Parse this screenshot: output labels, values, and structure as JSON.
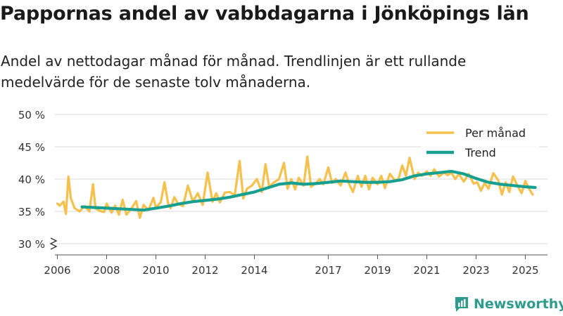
{
  "title": "Pappornas andel av vabbdagarna i Jönköpings län",
  "subtitle": "Andel av nettodagar månad för månad. Trendlinjen är ett rullande medelvärde för de senaste tolv månaderna.",
  "brand": {
    "name": "Newsworthy"
  },
  "colors": {
    "monthly": "#f6c04b",
    "trend": "#17a090",
    "grid": "#e2e2e2",
    "axis": "#555555"
  },
  "chart_data": {
    "type": "line",
    "title": "Pappornas andel av vabbdagarna i Jönköpings län",
    "xlabel": "",
    "ylabel": "",
    "ylim": [
      30,
      50
    ],
    "xlim": [
      2005.9,
      2025.9
    ],
    "y_ticks": [
      30,
      35,
      40,
      45,
      50
    ],
    "y_tick_labels": [
      "30 %",
      "35 %",
      "40 %",
      "45 %",
      "50 %"
    ],
    "x_ticks": [
      2006,
      2008,
      2010,
      2012,
      2014,
      2017,
      2019,
      2021,
      2023,
      2025
    ],
    "x_tick_labels": [
      "2006",
      "2008",
      "2010",
      "2012",
      "2014",
      "2017",
      "2019",
      "2021",
      "2023",
      "2025"
    ],
    "axis_break": true,
    "legend": {
      "position": "top-right",
      "entries": [
        "Per månad",
        "Trend"
      ]
    },
    "series": [
      {
        "name": "Per månad",
        "x": [
          2006.0,
          2006.1,
          2006.25,
          2006.35,
          2006.45,
          2006.55,
          2006.7,
          2006.9,
          2007.1,
          2007.3,
          2007.45,
          2007.55,
          2007.7,
          2007.9,
          2008.0,
          2008.2,
          2008.35,
          2008.5,
          2008.65,
          2008.8,
          2009.0,
          2009.2,
          2009.35,
          2009.5,
          2009.7,
          2009.9,
          2010.0,
          2010.2,
          2010.35,
          2010.5,
          2010.6,
          2010.75,
          2010.9,
          2011.1,
          2011.3,
          2011.5,
          2011.7,
          2011.9,
          2012.1,
          2012.3,
          2012.45,
          2012.6,
          2012.8,
          2013.0,
          2013.2,
          2013.4,
          2013.55,
          2013.7,
          2013.9,
          2014.1,
          2014.3,
          2014.45,
          2014.6,
          2014.8,
          2015.0,
          2015.2,
          2015.35,
          2015.5,
          2015.65,
          2015.8,
          2016.0,
          2016.15,
          2016.3,
          2016.5,
          2016.65,
          2016.8,
          2017.0,
          2017.15,
          2017.3,
          2017.5,
          2017.7,
          2017.85,
          2018.0,
          2018.2,
          2018.35,
          2018.5,
          2018.65,
          2018.8,
          2019.0,
          2019.15,
          2019.3,
          2019.5,
          2019.7,
          2019.85,
          2020.0,
          2020.15,
          2020.3,
          2020.5,
          2020.65,
          2020.8,
          2021.0,
          2021.15,
          2021.3,
          2021.5,
          2021.7,
          2021.85,
          2022.0,
          2022.15,
          2022.3,
          2022.5,
          2022.7,
          2022.9,
          2023.05,
          2023.2,
          2023.35,
          2023.5,
          2023.7,
          2023.9,
          2024.05,
          2024.2,
          2024.35,
          2024.5,
          2024.7,
          2024.85,
          2025.0,
          2025.15,
          2025.3
        ],
        "values": [
          36.2,
          35.9,
          36.5,
          34.6,
          40.4,
          37.0,
          35.5,
          35.0,
          35.8,
          35.0,
          39.2,
          35.5,
          35.1,
          34.9,
          36.2,
          34.8,
          35.9,
          34.5,
          36.8,
          34.5,
          35.4,
          36.6,
          34.0,
          36.0,
          35.2,
          37.1,
          35.6,
          36.4,
          39.5,
          36.2,
          35.5,
          37.2,
          36.2,
          35.8,
          39.0,
          36.5,
          37.8,
          36.0,
          41.0,
          36.5,
          37.8,
          36.4,
          37.9,
          38.0,
          37.5,
          42.8,
          37.0,
          38.5,
          39.0,
          40.0,
          38.0,
          42.3,
          38.8,
          39.5,
          40.0,
          42.5,
          38.5,
          40.0,
          38.4,
          40.2,
          39.0,
          43.5,
          38.8,
          39.4,
          40.0,
          39.2,
          41.8,
          39.4,
          40.0,
          39.0,
          41.0,
          39.2,
          38.0,
          40.5,
          38.8,
          40.5,
          38.4,
          40.2,
          39.2,
          40.5,
          38.6,
          40.8,
          39.8,
          40.0,
          42.1,
          40.5,
          43.3,
          40.0,
          41.0,
          40.5,
          41.2,
          40.5,
          41.5,
          40.4,
          41.0,
          40.6,
          41.0,
          40.0,
          40.8,
          39.6,
          40.8,
          39.3,
          39.5,
          38.2,
          39.4,
          38.5,
          40.9,
          39.8,
          37.6,
          39.5,
          38.0,
          40.4,
          38.8,
          37.8,
          39.7,
          38.5,
          37.6
        ]
      },
      {
        "name": "Trend",
        "x": [
          2007.0,
          2007.5,
          2008.0,
          2008.5,
          2009.0,
          2009.5,
          2010.0,
          2010.5,
          2011.0,
          2011.5,
          2012.0,
          2012.5,
          2013.0,
          2013.5,
          2014.0,
          2014.5,
          2015.0,
          2015.5,
          2016.0,
          2016.5,
          2017.0,
          2017.5,
          2018.0,
          2018.5,
          2019.0,
          2019.5,
          2020.0,
          2020.5,
          2021.0,
          2021.5,
          2022.0,
          2022.5,
          2023.0,
          2023.5,
          2024.0,
          2024.5,
          2025.0,
          2025.4
        ],
        "values": [
          35.7,
          35.6,
          35.5,
          35.4,
          35.3,
          35.2,
          35.5,
          35.8,
          36.2,
          36.5,
          36.7,
          36.9,
          37.2,
          37.6,
          38.0,
          38.6,
          39.2,
          39.4,
          39.2,
          39.3,
          39.5,
          39.7,
          39.6,
          39.5,
          39.5,
          39.6,
          39.9,
          40.5,
          40.8,
          41.0,
          41.2,
          40.8,
          40.1,
          39.5,
          39.2,
          39.0,
          38.8,
          38.7
        ]
      }
    ]
  }
}
